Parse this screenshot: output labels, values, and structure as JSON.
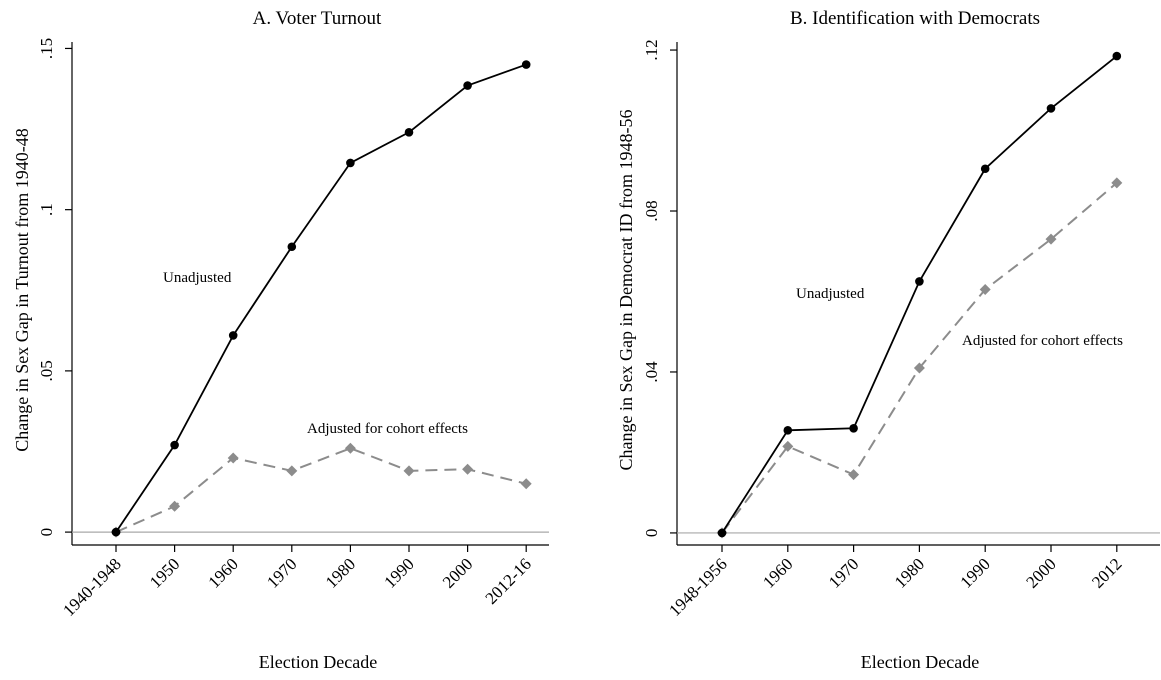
{
  "colors": {
    "unadjusted": "#000000",
    "adjusted": "#8c8c8c",
    "baseline": "#a8a8a8"
  },
  "chart_data": [
    {
      "type": "line",
      "title": "A. Voter Turnout",
      "xlabel": "Election Decade",
      "ylabel": "Change in Sex Gap in Turnout from 1940-48",
      "categories": [
        "1940-1948",
        "1950",
        "1960",
        "1970",
        "1980",
        "1990",
        "2000",
        "2012-16"
      ],
      "ylim": [
        -0.004,
        0.152
      ],
      "yticks": [
        0,
        0.05,
        0.1,
        0.15
      ],
      "ytick_labels": [
        "0",
        ".05",
        ".1",
        ".15"
      ],
      "grid": false,
      "series": [
        {
          "key": "unadjusted",
          "values": [
            0,
            0.027,
            0.061,
            0.0885,
            0.1145,
            0.124,
            0.1385,
            0.145
          ]
        },
        {
          "key": "adjusted",
          "values": [
            0,
            0.008,
            0.023,
            0.019,
            0.026,
            0.019,
            0.0195,
            0.015
          ]
        }
      ],
      "annotations": [
        {
          "text": "Unadjusted",
          "series": "unadjusted"
        },
        {
          "text": "Adjusted for cohort effects",
          "series": "adjusted"
        }
      ]
    },
    {
      "type": "line",
      "title": "B. Identification with Democrats",
      "xlabel": "Election Decade",
      "ylabel": "Change in Sex Gap in Democrat ID from 1948-56",
      "categories": [
        "1948-1956",
        "1960",
        "1970",
        "1980",
        "1990",
        "2000",
        "2012"
      ],
      "ylim": [
        -0.003,
        0.122
      ],
      "yticks": [
        0,
        0.04,
        0.08,
        0.12
      ],
      "ytick_labels": [
        "0",
        ".04",
        ".08",
        ".12"
      ],
      "grid": false,
      "series": [
        {
          "key": "unadjusted",
          "values": [
            0,
            0.0255,
            0.026,
            0.0625,
            0.0905,
            0.1055,
            0.1185
          ]
        },
        {
          "key": "adjusted",
          "values": [
            0,
            0.0215,
            0.0145,
            0.041,
            0.0605,
            0.073,
            0.087
          ]
        }
      ],
      "annotations": [
        {
          "text": "Unadjusted",
          "series": "unadjusted"
        },
        {
          "text": "Adjusted for cohort effects",
          "series": "adjusted"
        }
      ]
    }
  ]
}
